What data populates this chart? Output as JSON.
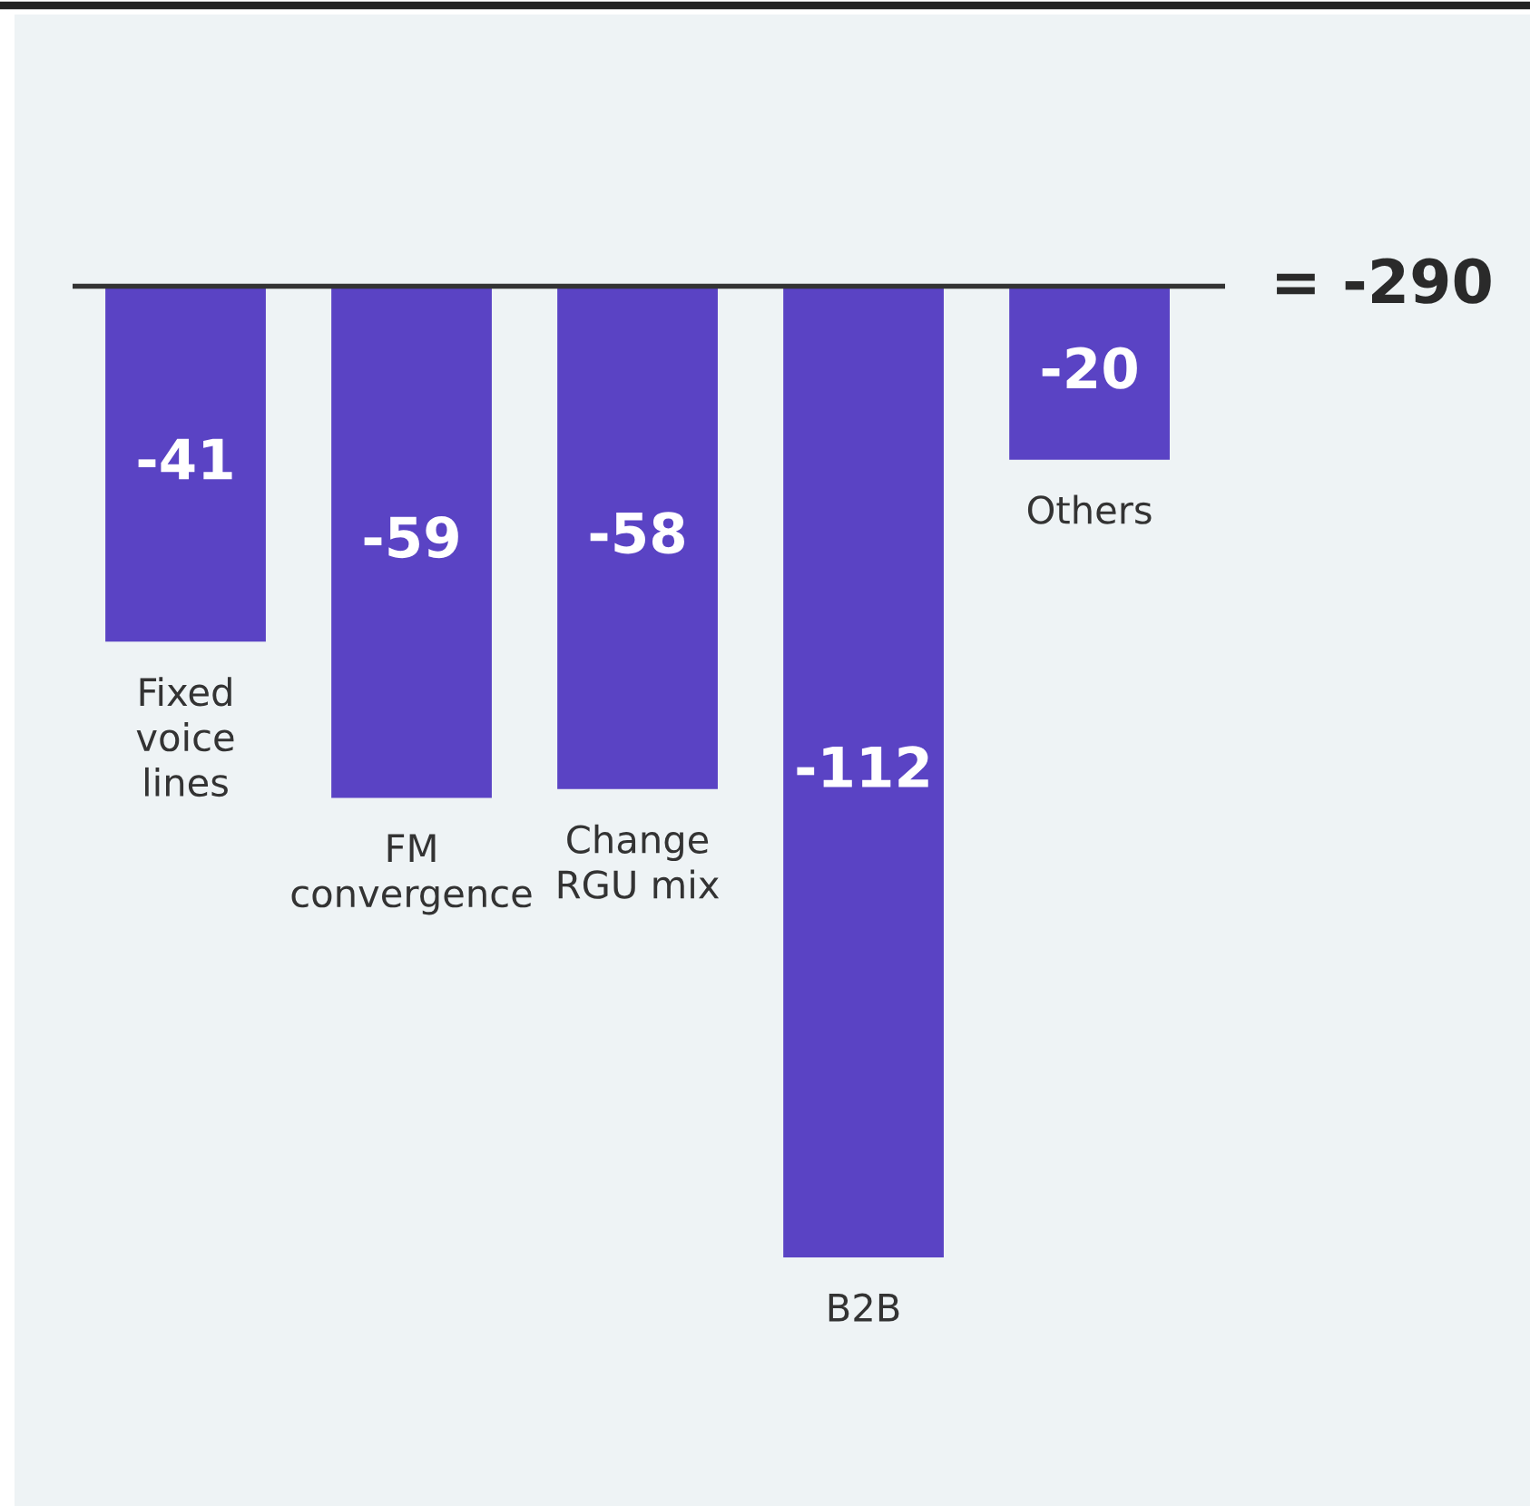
{
  "chart_data": {
    "type": "bar",
    "categories": [
      "Fixed\nvoice\nlines",
      "FM\nconvergence",
      "Change\nRGU mix",
      "B2B",
      "Others"
    ],
    "values": [
      -41,
      -59,
      -58,
      -112,
      -20
    ],
    "color": "#5a43c4",
    "data_labels": true,
    "annotations": [
      "= -290"
    ]
  }
}
